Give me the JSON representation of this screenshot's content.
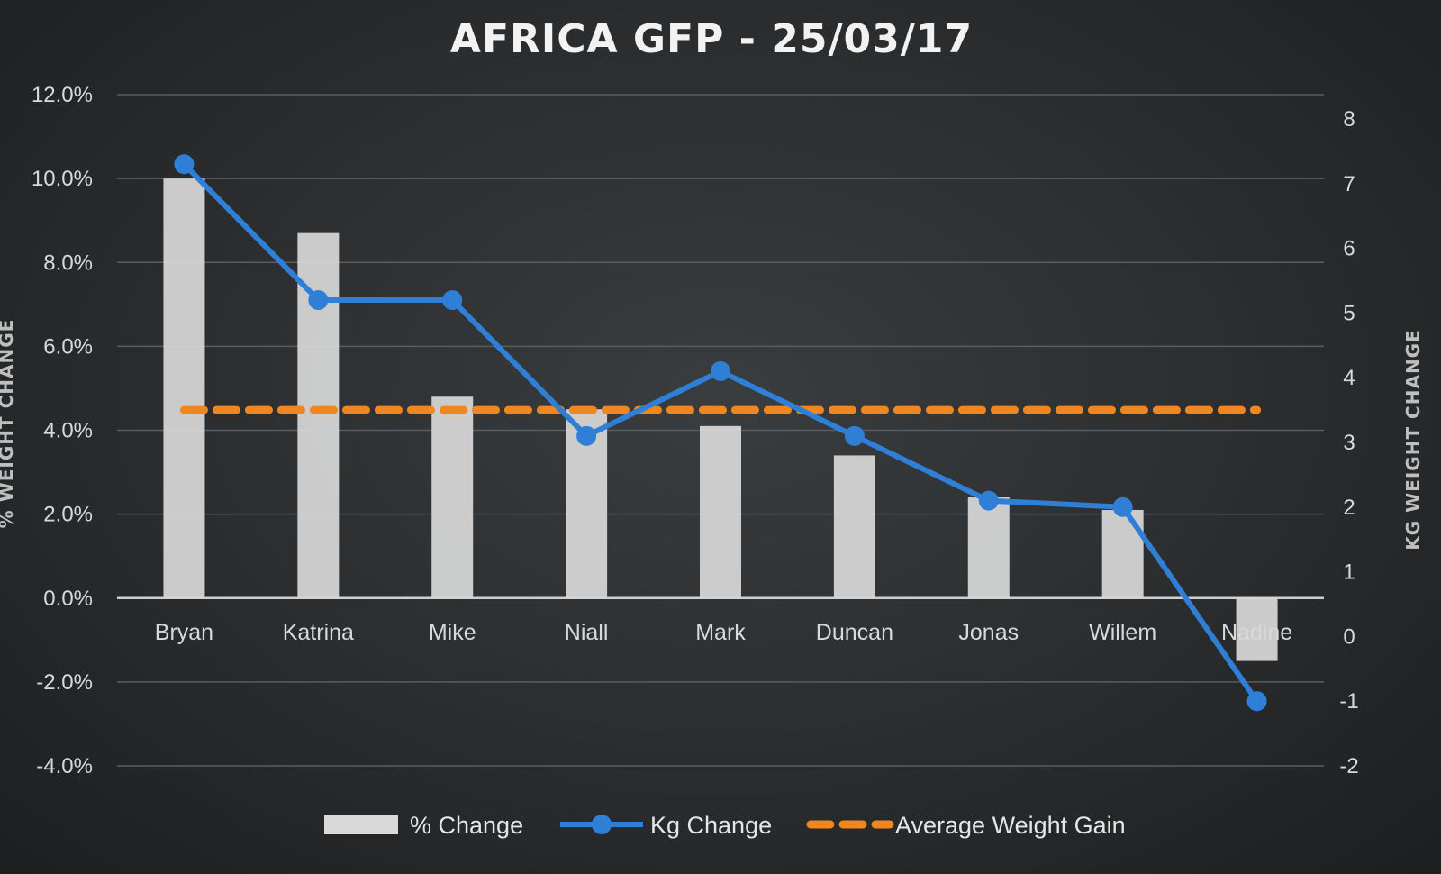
{
  "chart_data": {
    "type": "bar",
    "title": "AFRICA GFP - 25/03/17",
    "ylabel": "% WEIGHT CHANGE",
    "y2label": "KG WEIGHT CHANGE",
    "categories": [
      "Bryan",
      "Katrina",
      "Mike",
      "Niall",
      "Mark",
      "Duncan",
      "Jonas",
      "Willem",
      "Nadine"
    ],
    "ylim": [
      -4,
      12
    ],
    "yticks": [
      "12.0%",
      "10.0%",
      "8.0%",
      "6.0%",
      "4.0%",
      "2.0%",
      "0.0%",
      "-2.0%",
      "-4.0%"
    ],
    "y2lim": [
      -2,
      8
    ],
    "y2ticks": [
      "8",
      "7",
      "6",
      "5",
      "4",
      "3",
      "2",
      "1",
      "0",
      "-1",
      "-2"
    ],
    "series": [
      {
        "name": "% Change",
        "type": "bar",
        "axis": "left",
        "values": [
          10.0,
          8.7,
          4.8,
          4.5,
          4.1,
          3.4,
          2.4,
          2.1,
          -1.5
        ],
        "color": "#d9d9d9"
      },
      {
        "name": "Kg Change",
        "type": "line",
        "axis": "right",
        "values": [
          7.3,
          5.2,
          5.2,
          3.1,
          4.1,
          3.1,
          2.1,
          2.0,
          -1.0
        ],
        "color": "#2f7fd6"
      },
      {
        "name": "Average Weight Gain",
        "type": "line",
        "style": "dashed",
        "axis": "right",
        "values": [
          3.5,
          3.5,
          3.5,
          3.5,
          3.5,
          3.5,
          3.5,
          3.5,
          3.5
        ],
        "color": "#f0861f"
      }
    ],
    "grid": true,
    "legend": "bottom"
  }
}
